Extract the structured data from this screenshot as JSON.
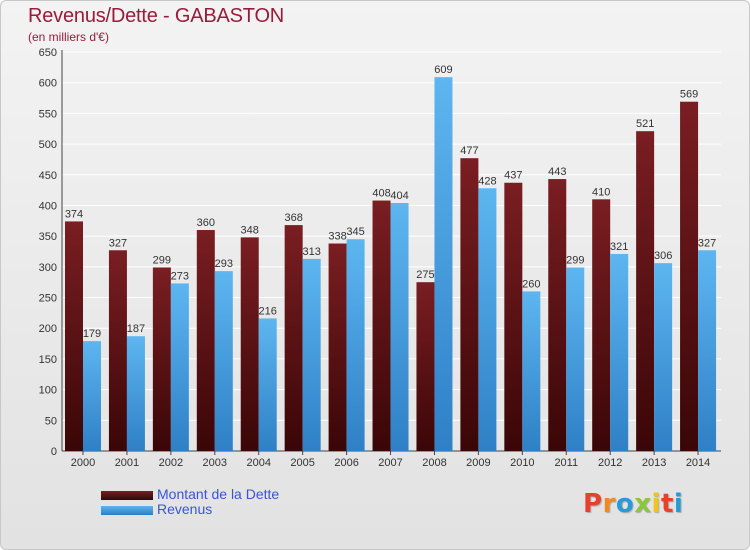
{
  "header": {
    "title": "Revenus/Dette - GABASTON",
    "subtitle": "(en milliers d'€)"
  },
  "colors": {
    "dette": "#7a1e22",
    "revenus": "#3d9ee3",
    "title": "#9a1b3a",
    "legend_text": "#3a54d6"
  },
  "logo": {
    "text": "Proxiti"
  },
  "chart_data": {
    "type": "bar",
    "title": "Revenus/Dette - GABASTON",
    "subtitle": "(en milliers d'€)",
    "categories": [
      "2000",
      "2001",
      "2002",
      "2003",
      "2004",
      "2005",
      "2006",
      "2007",
      "2008",
      "2009",
      "2010",
      "2011",
      "2012",
      "2013",
      "2014"
    ],
    "series": [
      {
        "name": "Montant de la Dette",
        "values": [
          374,
          327,
          299,
          360,
          348,
          368,
          338,
          408,
          275,
          477,
          437,
          443,
          410,
          521,
          569
        ]
      },
      {
        "name": "Revenus",
        "values": [
          179,
          187,
          273,
          293,
          216,
          313,
          345,
          404,
          609,
          428,
          260,
          299,
          321,
          306,
          327
        ]
      }
    ],
    "ylim": [
      0,
      650
    ],
    "yticks": [
      0,
      50,
      100,
      150,
      200,
      250,
      300,
      350,
      400,
      450,
      500,
      550,
      600,
      650
    ],
    "grid": true,
    "legend": "bottom-left"
  }
}
